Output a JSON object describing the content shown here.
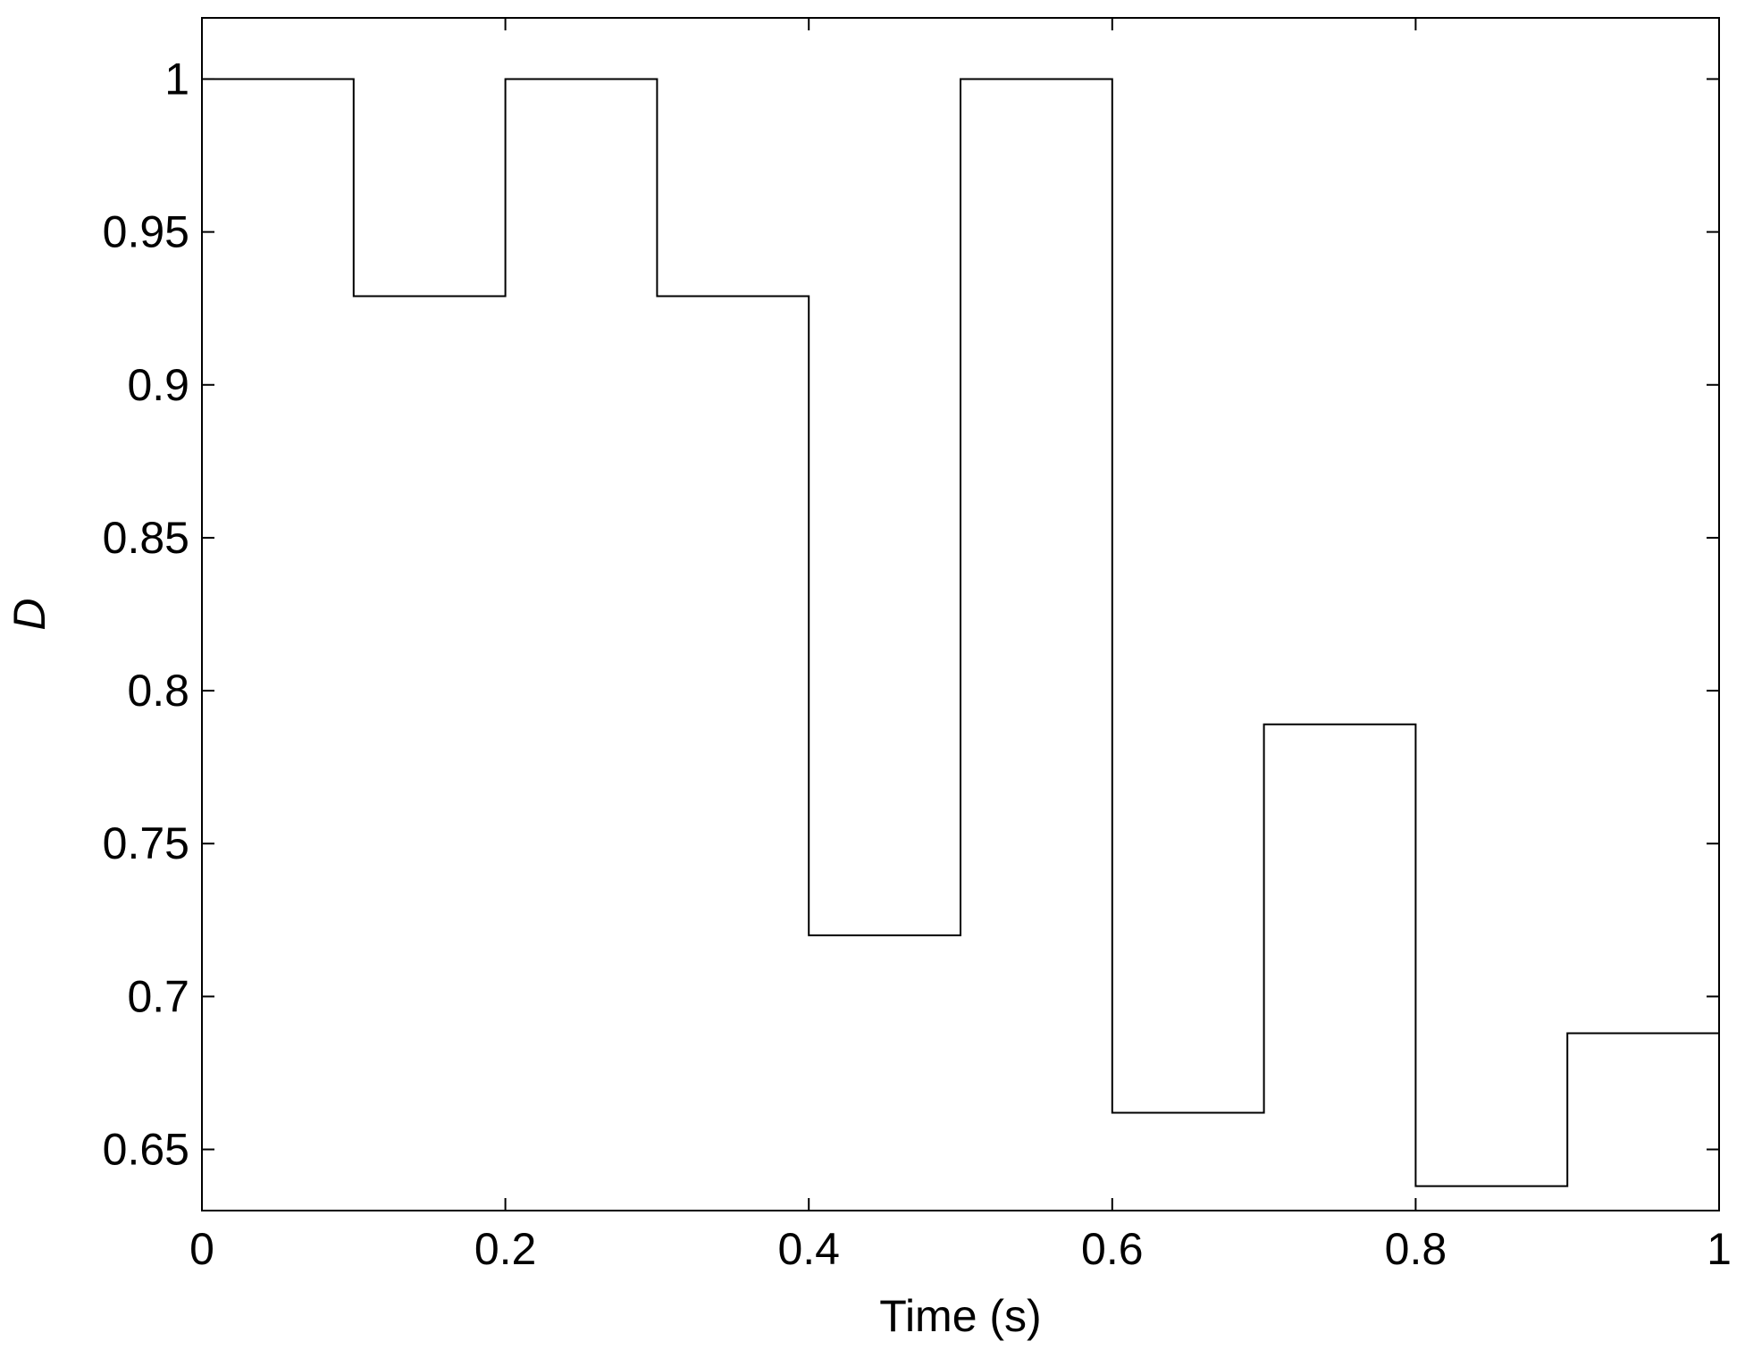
{
  "chart_data": {
    "type": "line",
    "step": true,
    "title": "",
    "xlabel": "Time (s)",
    "ylabel": "D",
    "xlim": [
      0,
      1
    ],
    "ylim": [
      0.63,
      1.02
    ],
    "xticks": [
      0,
      0.2,
      0.4,
      0.6,
      0.8,
      1
    ],
    "xtick_labels": [
      "0",
      "0.2",
      "0.4",
      "0.6",
      "0.8",
      "1"
    ],
    "yticks": [
      0.65,
      0.7,
      0.75,
      0.8,
      0.85,
      0.9,
      0.95,
      1
    ],
    "ytick_labels": [
      "0.65",
      "0.7",
      "0.75",
      "0.8",
      "0.85",
      "0.9",
      "0.95",
      "1"
    ],
    "grid": false,
    "legend": "none",
    "series": [
      {
        "color": "#000000",
        "x": [
          0,
          0.1,
          0.2,
          0.3,
          0.4,
          0.5,
          0.6,
          0.7,
          0.8,
          0.9,
          1.0
        ],
        "y": [
          1.0,
          0.929,
          1.0,
          0.929,
          0.72,
          1.0,
          0.662,
          0.789,
          0.638,
          0.688,
          0.688
        ]
      }
    ]
  }
}
